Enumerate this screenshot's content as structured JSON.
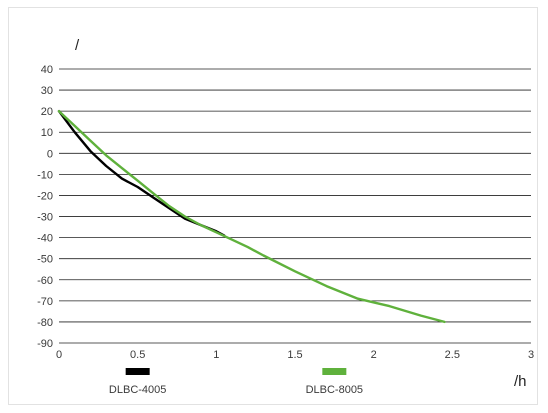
{
  "chart_data": {
    "type": "line",
    "title": "",
    "ylabel": "/",
    "xlabel": "/h",
    "xlim": [
      0,
      3
    ],
    "ylim": [
      -90,
      40
    ],
    "xticks": [
      "0",
      "0.5",
      "1",
      "1.5",
      "2",
      "2.5",
      "3"
    ],
    "yticks": [
      "40",
      "30",
      "20",
      "10",
      "0",
      "-10",
      "-20",
      "-30",
      "-40",
      "-50",
      "-60",
      "-70",
      "-80",
      "-90"
    ],
    "grid": "horizontal",
    "legend_position": "bottom",
    "series": [
      {
        "name": "DLBC-4005",
        "color": "#000000",
        "x": [
          0,
          0.1,
          0.2,
          0.3,
          0.4,
          0.5,
          0.6,
          0.7,
          0.8,
          0.9,
          1.0,
          1.05
        ],
        "y": [
          20,
          10,
          1,
          -6,
          -12,
          -16,
          -21,
          -26,
          -31,
          -34,
          -37,
          -39
        ]
      },
      {
        "name": "DLBC-8005",
        "color": "#5fb13c",
        "x": [
          0,
          0.1,
          0.2,
          0.3,
          0.4,
          0.5,
          0.6,
          0.7,
          0.8,
          0.9,
          1.0,
          1.1,
          1.2,
          1.3,
          1.5,
          1.7,
          1.9,
          2.1,
          2.3,
          2.45
        ],
        "y": [
          20,
          13,
          6,
          -1,
          -7,
          -13,
          -19,
          -25,
          -30,
          -34,
          -37.5,
          -41,
          -44.5,
          -48.5,
          -56,
          -63,
          -69,
          -72.5,
          -77,
          -80
        ]
      }
    ]
  }
}
